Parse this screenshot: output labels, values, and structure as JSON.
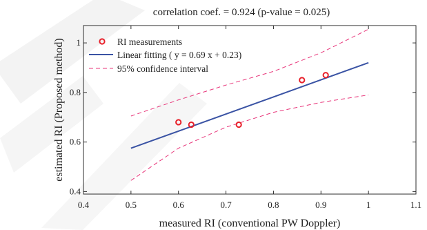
{
  "chart_data": {
    "type": "scatter",
    "title": "correlation coef. = 0.924 (p-value = 0.025)",
    "xlabel": "measured RI (conventional PW Doppler)",
    "ylabel": "estimated RI (Proposed method)",
    "xlim": [
      0.4,
      1.1
    ],
    "ylim": [
      0.39,
      1.07
    ],
    "xticks": [
      0.4,
      0.5,
      0.6,
      0.7,
      0.8,
      0.9,
      1,
      1.1
    ],
    "xtick_labels": [
      "0.4",
      "0.5",
      "0.6",
      "0.7",
      "0.8",
      "0.9",
      "1",
      "1.1"
    ],
    "yticks": [
      0.4,
      0.6,
      0.8,
      1
    ],
    "ytick_labels": [
      "0.4",
      "0.6",
      "0.8",
      "1"
    ],
    "grid": false,
    "legend_position": "top-left",
    "series": [
      {
        "name": "RI measurements",
        "kind": "points",
        "color": "#e8202a",
        "x": [
          0.6,
          0.627,
          0.727,
          0.86,
          0.91
        ],
        "y": [
          0.68,
          0.67,
          0.67,
          0.85,
          0.87
        ]
      },
      {
        "name": "Linear fitting ( y = 0.69 x + 0.23)",
        "kind": "line",
        "color": "#3a53a4",
        "x": [
          0.5,
          1.0
        ],
        "y": [
          0.575,
          0.92
        ]
      },
      {
        "name": "95% confidence interval",
        "kind": "dashed",
        "color": "#e8357a",
        "upper": {
          "x": [
            0.5,
            0.6,
            0.7,
            0.8,
            0.9,
            1.0
          ],
          "y": [
            0.705,
            0.77,
            0.83,
            0.885,
            0.96,
            1.055
          ]
        },
        "lower": {
          "x": [
            0.5,
            0.6,
            0.7,
            0.8,
            0.9,
            1.0
          ],
          "y": [
            0.445,
            0.575,
            0.66,
            0.72,
            0.76,
            0.79
          ]
        }
      }
    ]
  },
  "colors": {
    "axis": "#2b2b2b",
    "watermark": "#f2f2f2"
  }
}
